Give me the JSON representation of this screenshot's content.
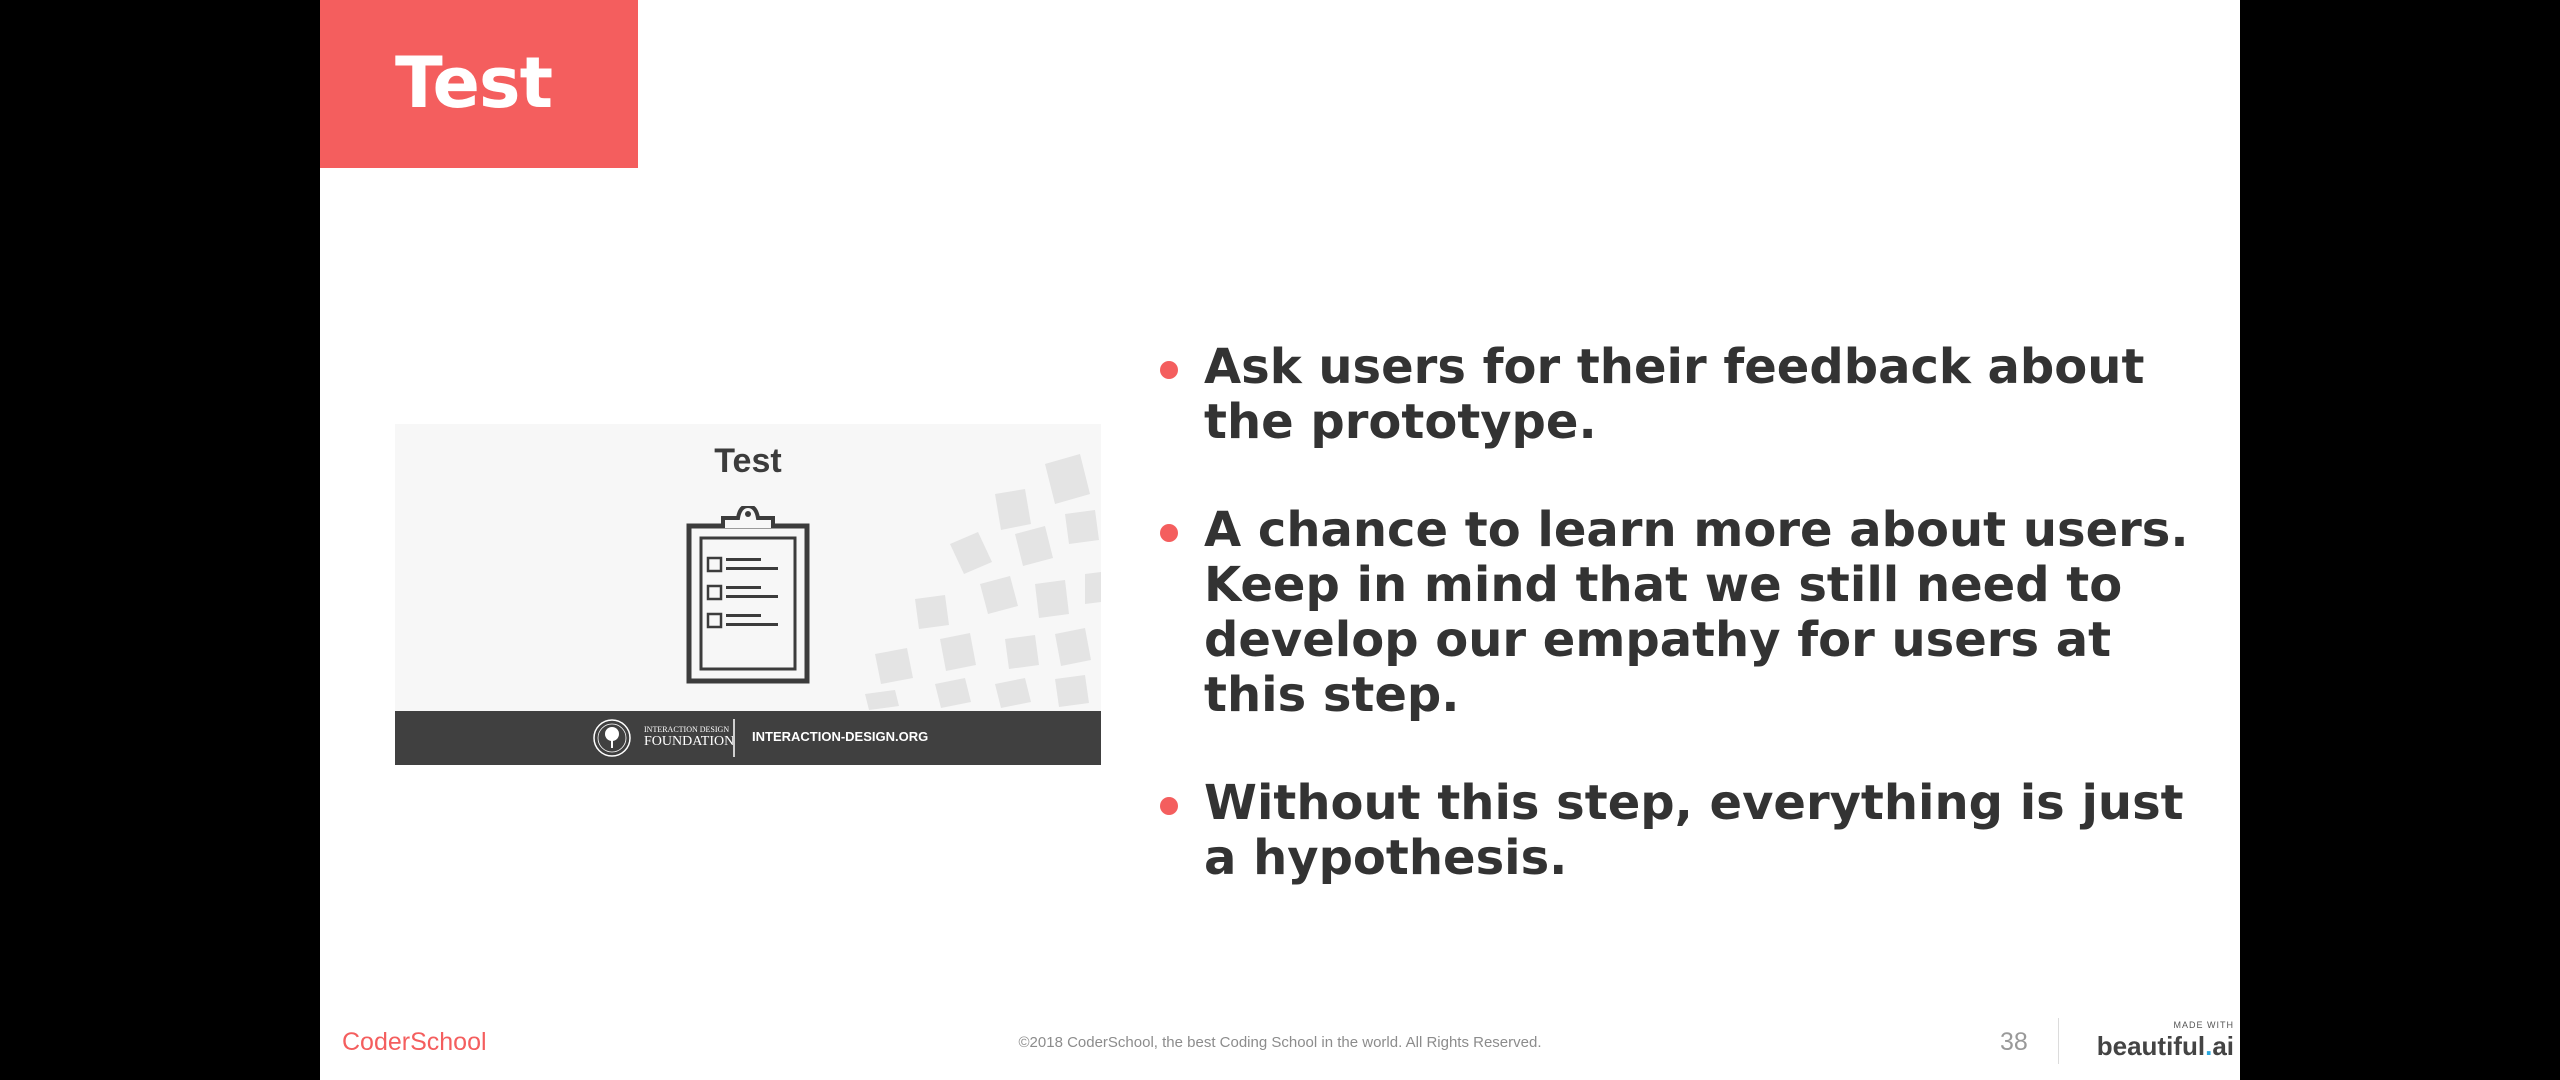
{
  "slide": {
    "title": "Test",
    "image": {
      "title": "Test",
      "foundation_small": "INTERACTION DESIGN",
      "foundation_big": "FOUNDATION",
      "url": "INTERACTION-DESIGN.ORG",
      "icon": "clipboard-checklist-icon"
    },
    "bullets": [
      "Ask users for their feedback about the prototype.",
      "A chance to learn more about users. Keep in mind that we still need to develop our empathy for users at this step.",
      "Without this step, everything is just a hypothesis."
    ]
  },
  "footer": {
    "logo": "CoderSchool",
    "copyright": "©2018 CoderSchool, the best Coding School in the world. All Rights Reserved.",
    "page_number": "38",
    "made_with": "MADE WITH",
    "brand_prefix": "beautiful",
    "brand_dot": ".",
    "brand_suffix": "ai"
  },
  "colors": {
    "accent": "#f45e5e",
    "text": "#333333",
    "image_bar": "#404040",
    "brand_dot": "#29a8e0"
  }
}
